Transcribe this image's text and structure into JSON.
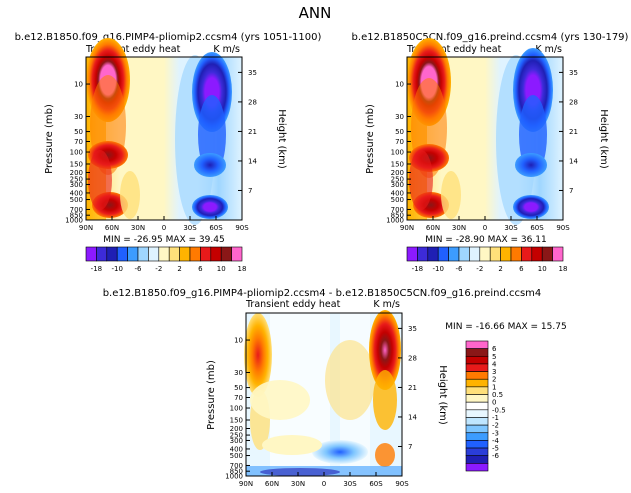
{
  "title": "ANN",
  "colors": {
    "div12": [
      "#8c1aff",
      "#3d2bd9",
      "#1f1fb4",
      "#2060ff",
      "#3c9cff",
      "#9fd6ff",
      "#dff3ff",
      "#fff7c4",
      "#ffe07a",
      "#ffb300",
      "#ff7a00",
      "#e81a1a",
      "#c40000",
      "#8a1717",
      "#ff66cc"
    ],
    "div_diff": [
      "#8c1aff",
      "#1f1fb4",
      "#2a3dd9",
      "#2060ff",
      "#3c9cff",
      "#7fc6ff",
      "#bfe6ff",
      "#e8f7ff",
      "#ffffff",
      "#fff7c4",
      "#ffe07a",
      "#ffb300",
      "#ff7a00",
      "#e81a1a",
      "#c40000",
      "#8a1717",
      "#ff66cc"
    ]
  },
  "chart_data": [
    {
      "type": "heatmap",
      "panel": "top-left",
      "title": "b.e12.B1850.f09_g16.PIMP4-pliomip2.ccsm4 (yrs 1051-1100)",
      "subtitle_left": "Transient eddy heat",
      "units": "K m/s",
      "xlabel": "",
      "ylabel": "Pressure (mb)",
      "y2label": "Height (km)",
      "xticks": [
        "90N",
        "60N",
        "30N",
        "0",
        "30S",
        "60S",
        "90S"
      ],
      "yticks": [
        "10",
        "30",
        "50",
        "70",
        "100",
        "150",
        "200",
        "250",
        "300",
        "400",
        "500",
        "700",
        "850",
        "1000"
      ],
      "y2ticks": [
        "35",
        "28",
        "21",
        "14",
        "7"
      ],
      "stats": "MIN = -26.95   MAX = 39.45",
      "min": -26.95,
      "max": 39.45,
      "colorbar_labels": [
        "-18",
        "-10",
        "-6",
        "-2",
        "2",
        "6",
        "10",
        "18"
      ]
    },
    {
      "type": "heatmap",
      "panel": "top-right",
      "title": "b.e12.B1850C5CN.f09_g16.preind.ccsm4 (yrs 130-179)",
      "subtitle_left": "Transient eddy heat",
      "units": "K m/s",
      "xlabel": "",
      "ylabel": "Pressure (mb)",
      "y2label": "Height (km)",
      "xticks": [
        "90N",
        "60N",
        "30N",
        "0",
        "30S",
        "60S",
        "90S"
      ],
      "yticks": [
        "10",
        "30",
        "50",
        "70",
        "100",
        "150",
        "200",
        "250",
        "300",
        "400",
        "500",
        "700",
        "850",
        "1000"
      ],
      "y2ticks": [
        "35",
        "28",
        "21",
        "14",
        "7"
      ],
      "stats": "MIN = -28.90   MAX = 36.11",
      "min": -28.9,
      "max": 36.11,
      "colorbar_labels": [
        "-18",
        "-10",
        "-6",
        "-2",
        "2",
        "6",
        "10",
        "18"
      ]
    },
    {
      "type": "heatmap",
      "panel": "bottom",
      "title": "b.e12.B1850.f09_g16.PIMP4-pliomip2.ccsm4 - b.e12.B1850C5CN.f09_g16.preind.ccsm4",
      "subtitle_left": "Transient eddy heat",
      "units": "K m/s",
      "xlabel": "",
      "ylabel": "Pressure (mb)",
      "y2label": "Height (km)",
      "xticks": [
        "90N",
        "60N",
        "30N",
        "0",
        "30S",
        "60S",
        "90S"
      ],
      "yticks": [
        "10",
        "30",
        "50",
        "70",
        "100",
        "150",
        "200",
        "250",
        "300",
        "400",
        "500",
        "700",
        "850",
        "1000"
      ],
      "y2ticks": [
        "35",
        "28",
        "21",
        "14",
        "7"
      ],
      "stats": "MIN = -16.66   MAX =  15.75",
      "min": -16.66,
      "max": 15.75,
      "colorbar_labels": [
        "6",
        "5",
        "4",
        "3",
        "2",
        "1",
        "0.5",
        "0",
        "-0.5",
        "-1",
        "-2",
        "-3",
        "-4",
        "-5",
        "-6"
      ]
    }
  ]
}
